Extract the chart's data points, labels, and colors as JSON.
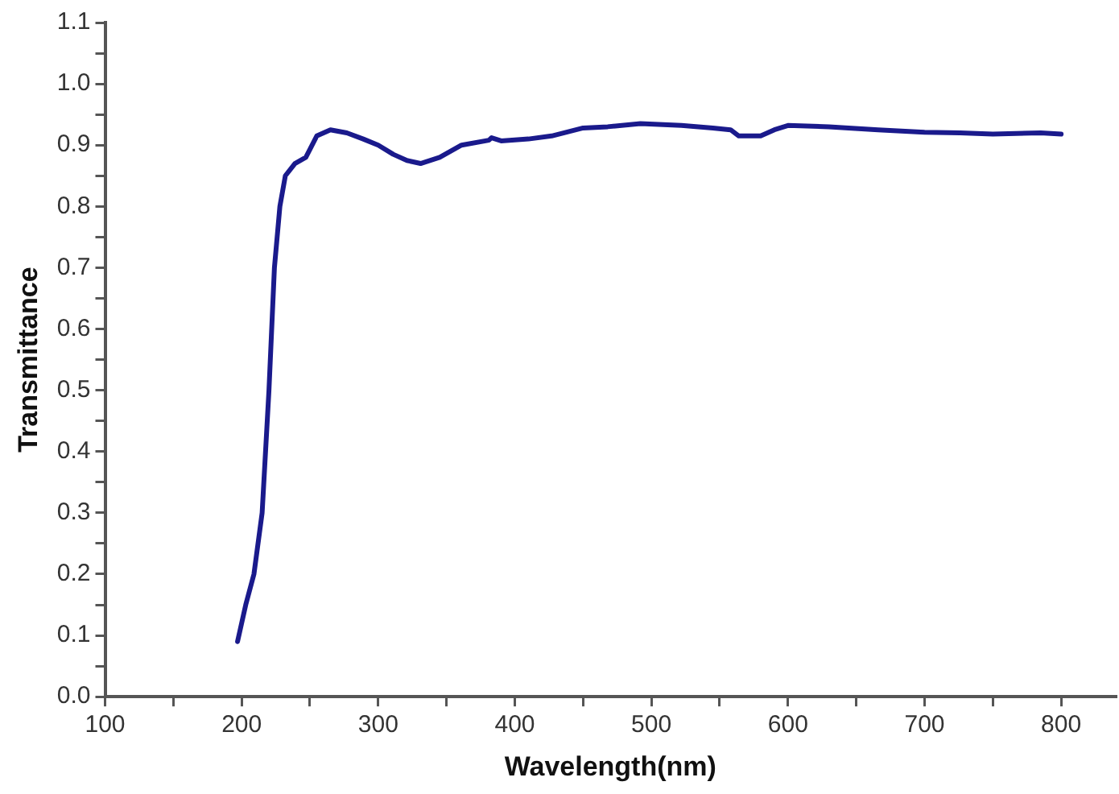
{
  "chart_data": {
    "type": "line",
    "xlabel": "Wavelength(nm)",
    "ylabel": "Transmittance",
    "xlim": [
      100,
      840
    ],
    "ylim": [
      0,
      1.1
    ],
    "xticks": [
      100,
      {
        "value": 150,
        "label": null
      },
      200,
      {
        "value": 250,
        "label": null
      },
      300,
      {
        "value": 350,
        "label": null
      },
      400,
      {
        "value": 450,
        "label": null
      },
      500,
      {
        "value": 550,
        "label": null
      },
      600,
      {
        "value": 650,
        "label": null
      },
      700,
      {
        "value": 750,
        "label": null
      },
      800
    ],
    "yticks": [
      {
        "value": 0,
        "label": "0.0"
      },
      {
        "value": 0.05,
        "label": null
      },
      0.1,
      {
        "value": 0.15,
        "label": null
      },
      0.2,
      {
        "value": 0.25,
        "label": null
      },
      0.3,
      {
        "value": 0.35,
        "label": null
      },
      0.4,
      {
        "value": 0.45,
        "label": null
      },
      0.5,
      {
        "value": 0.55,
        "label": null
      },
      0.6,
      {
        "value": 0.65,
        "label": null
      },
      0.7,
      {
        "value": 0.75,
        "label": null
      },
      0.8,
      {
        "value": 0.85,
        "label": null
      },
      0.9,
      {
        "value": 0.95,
        "label": null
      },
      {
        "value": 1,
        "label": "1.0"
      },
      {
        "value": 1.05,
        "label": null
      },
      1.1
    ],
    "grid": false,
    "legend": false,
    "marker": "none",
    "line_style": "solid",
    "series": [
      {
        "color": "#1a1a8c",
        "x": [
          197,
          203,
          209,
          215,
          220,
          224,
          228,
          232,
          239,
          247,
          255,
          265,
          277,
          289,
          300,
          311,
          321,
          331,
          345,
          361,
          381,
          383,
          390,
          410,
          427,
          450,
          468,
          492,
          522,
          545,
          558,
          564,
          580,
          590,
          600,
          630,
          666,
          700,
          726,
          750,
          785,
          800
        ],
        "values": [
          0.09,
          0.15,
          0.2,
          0.3,
          0.5,
          0.7,
          0.8,
          0.85,
          0.87,
          0.88,
          0.915,
          0.925,
          0.92,
          0.91,
          0.9,
          0.885,
          0.875,
          0.87,
          0.88,
          0.9,
          0.908,
          0.912,
          0.907,
          0.91,
          0.915,
          0.928,
          0.93,
          0.935,
          0.932,
          0.928,
          0.925,
          0.915,
          0.915,
          0.925,
          0.932,
          0.93,
          0.925,
          0.921,
          0.92,
          0.918,
          0.92,
          0.918
        ]
      }
    ]
  }
}
